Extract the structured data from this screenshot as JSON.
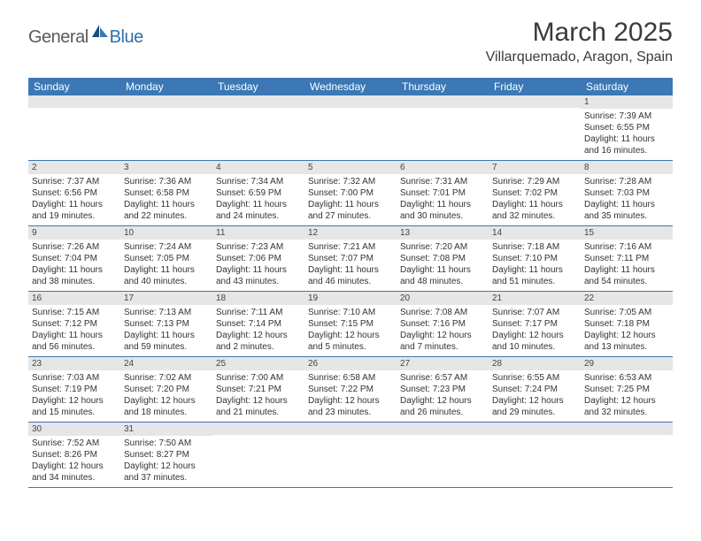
{
  "brand": {
    "part1": "General",
    "part2": "Blue"
  },
  "title": "March 2025",
  "location": "Villarquemado, Aragon, Spain",
  "colors": {
    "header_bg": "#3b78b5",
    "header_text": "#ffffff",
    "daynum_bg": "#e6e6e6",
    "border": "#3b78b5",
    "logo_dark": "#5a5a5a",
    "logo_blue": "#2f6fa9"
  },
  "weekdays": [
    "Sunday",
    "Monday",
    "Tuesday",
    "Wednesday",
    "Thursday",
    "Friday",
    "Saturday"
  ],
  "weeks": [
    [
      null,
      null,
      null,
      null,
      null,
      null,
      {
        "n": "1",
        "sr": "Sunrise: 7:39 AM",
        "ss": "Sunset: 6:55 PM",
        "dl": "Daylight: 11 hours and 16 minutes."
      }
    ],
    [
      {
        "n": "2",
        "sr": "Sunrise: 7:37 AM",
        "ss": "Sunset: 6:56 PM",
        "dl": "Daylight: 11 hours and 19 minutes."
      },
      {
        "n": "3",
        "sr": "Sunrise: 7:36 AM",
        "ss": "Sunset: 6:58 PM",
        "dl": "Daylight: 11 hours and 22 minutes."
      },
      {
        "n": "4",
        "sr": "Sunrise: 7:34 AM",
        "ss": "Sunset: 6:59 PM",
        "dl": "Daylight: 11 hours and 24 minutes."
      },
      {
        "n": "5",
        "sr": "Sunrise: 7:32 AM",
        "ss": "Sunset: 7:00 PM",
        "dl": "Daylight: 11 hours and 27 minutes."
      },
      {
        "n": "6",
        "sr": "Sunrise: 7:31 AM",
        "ss": "Sunset: 7:01 PM",
        "dl": "Daylight: 11 hours and 30 minutes."
      },
      {
        "n": "7",
        "sr": "Sunrise: 7:29 AM",
        "ss": "Sunset: 7:02 PM",
        "dl": "Daylight: 11 hours and 32 minutes."
      },
      {
        "n": "8",
        "sr": "Sunrise: 7:28 AM",
        "ss": "Sunset: 7:03 PM",
        "dl": "Daylight: 11 hours and 35 minutes."
      }
    ],
    [
      {
        "n": "9",
        "sr": "Sunrise: 7:26 AM",
        "ss": "Sunset: 7:04 PM",
        "dl": "Daylight: 11 hours and 38 minutes."
      },
      {
        "n": "10",
        "sr": "Sunrise: 7:24 AM",
        "ss": "Sunset: 7:05 PM",
        "dl": "Daylight: 11 hours and 40 minutes."
      },
      {
        "n": "11",
        "sr": "Sunrise: 7:23 AM",
        "ss": "Sunset: 7:06 PM",
        "dl": "Daylight: 11 hours and 43 minutes."
      },
      {
        "n": "12",
        "sr": "Sunrise: 7:21 AM",
        "ss": "Sunset: 7:07 PM",
        "dl": "Daylight: 11 hours and 46 minutes."
      },
      {
        "n": "13",
        "sr": "Sunrise: 7:20 AM",
        "ss": "Sunset: 7:08 PM",
        "dl": "Daylight: 11 hours and 48 minutes."
      },
      {
        "n": "14",
        "sr": "Sunrise: 7:18 AM",
        "ss": "Sunset: 7:10 PM",
        "dl": "Daylight: 11 hours and 51 minutes."
      },
      {
        "n": "15",
        "sr": "Sunrise: 7:16 AM",
        "ss": "Sunset: 7:11 PM",
        "dl": "Daylight: 11 hours and 54 minutes."
      }
    ],
    [
      {
        "n": "16",
        "sr": "Sunrise: 7:15 AM",
        "ss": "Sunset: 7:12 PM",
        "dl": "Daylight: 11 hours and 56 minutes."
      },
      {
        "n": "17",
        "sr": "Sunrise: 7:13 AM",
        "ss": "Sunset: 7:13 PM",
        "dl": "Daylight: 11 hours and 59 minutes."
      },
      {
        "n": "18",
        "sr": "Sunrise: 7:11 AM",
        "ss": "Sunset: 7:14 PM",
        "dl": "Daylight: 12 hours and 2 minutes."
      },
      {
        "n": "19",
        "sr": "Sunrise: 7:10 AM",
        "ss": "Sunset: 7:15 PM",
        "dl": "Daylight: 12 hours and 5 minutes."
      },
      {
        "n": "20",
        "sr": "Sunrise: 7:08 AM",
        "ss": "Sunset: 7:16 PM",
        "dl": "Daylight: 12 hours and 7 minutes."
      },
      {
        "n": "21",
        "sr": "Sunrise: 7:07 AM",
        "ss": "Sunset: 7:17 PM",
        "dl": "Daylight: 12 hours and 10 minutes."
      },
      {
        "n": "22",
        "sr": "Sunrise: 7:05 AM",
        "ss": "Sunset: 7:18 PM",
        "dl": "Daylight: 12 hours and 13 minutes."
      }
    ],
    [
      {
        "n": "23",
        "sr": "Sunrise: 7:03 AM",
        "ss": "Sunset: 7:19 PM",
        "dl": "Daylight: 12 hours and 15 minutes."
      },
      {
        "n": "24",
        "sr": "Sunrise: 7:02 AM",
        "ss": "Sunset: 7:20 PM",
        "dl": "Daylight: 12 hours and 18 minutes."
      },
      {
        "n": "25",
        "sr": "Sunrise: 7:00 AM",
        "ss": "Sunset: 7:21 PM",
        "dl": "Daylight: 12 hours and 21 minutes."
      },
      {
        "n": "26",
        "sr": "Sunrise: 6:58 AM",
        "ss": "Sunset: 7:22 PM",
        "dl": "Daylight: 12 hours and 23 minutes."
      },
      {
        "n": "27",
        "sr": "Sunrise: 6:57 AM",
        "ss": "Sunset: 7:23 PM",
        "dl": "Daylight: 12 hours and 26 minutes."
      },
      {
        "n": "28",
        "sr": "Sunrise: 6:55 AM",
        "ss": "Sunset: 7:24 PM",
        "dl": "Daylight: 12 hours and 29 minutes."
      },
      {
        "n": "29",
        "sr": "Sunrise: 6:53 AM",
        "ss": "Sunset: 7:25 PM",
        "dl": "Daylight: 12 hours and 32 minutes."
      }
    ],
    [
      {
        "n": "30",
        "sr": "Sunrise: 7:52 AM",
        "ss": "Sunset: 8:26 PM",
        "dl": "Daylight: 12 hours and 34 minutes."
      },
      {
        "n": "31",
        "sr": "Sunrise: 7:50 AM",
        "ss": "Sunset: 8:27 PM",
        "dl": "Daylight: 12 hours and 37 minutes."
      },
      null,
      null,
      null,
      null,
      null
    ]
  ]
}
